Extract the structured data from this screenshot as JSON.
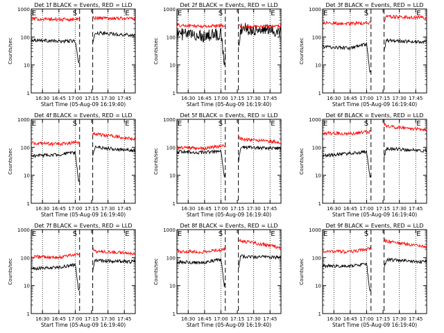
{
  "figure": {
    "xlabel": "Start Time (05-Aug-09 16:19:40)",
    "ylabel": "Counts/sec",
    "series_names": [
      "Events",
      "LLD"
    ],
    "colors": {
      "events": "#000000",
      "lld": "#ff0000",
      "axes": "#000000",
      "background": "#ffffff"
    },
    "markers": {
      "start": "S",
      "end": "E"
    }
  },
  "chart_data": [
    {
      "type": "line",
      "title": "Det 1f BLACK = Events, RED = LLD",
      "xlabel": "Start Time (05-Aug-09 16:19:40)",
      "ylabel": "Counts/sec",
      "xlim": [
        "16:19:40",
        "17:55"
      ],
      "ylim": [
        1,
        1000
      ],
      "yscale": "log",
      "xticks": [
        "16:30",
        "16:45",
        "17:00",
        "17:15",
        "17:30",
        "17:45"
      ],
      "yticks": [
        "1",
        "10",
        "100",
        "1000"
      ],
      "gap": [
        "17:04",
        "17:16"
      ],
      "dashed_lines": [
        "17:04",
        "17:16"
      ],
      "dotted_lines": [
        "16:30",
        "16:45",
        "17:00",
        "17:30",
        "17:45"
      ],
      "series": [
        {
          "name": "Events",
          "color": "#000000",
          "x": [
            "16:20",
            "16:45",
            "17:00",
            "17:03",
            "17:16",
            "17:18",
            "17:55"
          ],
          "y": [
            80,
            70,
            72,
            12,
            55,
            140,
            115
          ]
        },
        {
          "name": "LLD",
          "color": "#ff0000",
          "x": [
            "16:20",
            "16:45",
            "17:00",
            "17:03",
            "17:16",
            "17:18",
            "17:55"
          ],
          "y": [
            450,
            420,
            430,
            430,
            480,
            480,
            460
          ]
        }
      ]
    },
    {
      "type": "line",
      "title": "Det 2f BLACK = Events, RED = LLD",
      "xlabel": "Start Time (05-Aug-09 16:19:40)",
      "ylabel": "Counts/sec",
      "xlim": [
        "16:19:40",
        "17:55"
      ],
      "ylim": [
        1,
        1000
      ],
      "yscale": "log",
      "xticks": [
        "16:30",
        "16:45",
        "17:00",
        "17:15",
        "17:30",
        "17:45"
      ],
      "yticks": [
        "1",
        "10",
        "100",
        "1000"
      ],
      "gap": [
        "17:04",
        "17:16"
      ],
      "dashed_lines": [
        "17:04",
        "17:16"
      ],
      "dotted_lines": [
        "16:30",
        "16:45",
        "17:00",
        "17:30",
        "17:45"
      ],
      "series": [
        {
          "name": "Events",
          "color": "#000000",
          "x": [
            "16:20",
            "16:45",
            "17:00",
            "17:03",
            "17:16",
            "17:18",
            "17:55"
          ],
          "y": [
            130,
            110,
            130,
            15,
            50,
            200,
            160
          ]
        },
        {
          "name": "LLD",
          "color": "#ff0000",
          "x": [
            "16:20",
            "16:45",
            "17:00",
            "17:03",
            "17:16",
            "17:18",
            "17:55"
          ],
          "y": [
            260,
            240,
            260,
            260,
            280,
            220,
            250
          ]
        }
      ]
    },
    {
      "type": "line",
      "title": "Det 3f BLACK = Events, RED = LLD",
      "xlabel": "Start Time (05-Aug-09 16:19:40)",
      "ylabel": "Counts/sec",
      "xlim": [
        "16:19:40",
        "17:55"
      ],
      "ylim": [
        1,
        1000
      ],
      "yscale": "log",
      "xticks": [
        "16:30",
        "16:45",
        "17:00",
        "17:15",
        "17:30",
        "17:45"
      ],
      "yticks": [
        "1",
        "10",
        "100",
        "1000"
      ],
      "gap": [
        "17:04",
        "17:16"
      ],
      "dashed_lines": [
        "17:04",
        "17:16"
      ],
      "dotted_lines": [
        "16:30",
        "16:45",
        "17:00",
        "17:30",
        "17:45"
      ],
      "series": [
        {
          "name": "Events",
          "color": "#000000",
          "x": [
            "16:20",
            "16:45",
            "17:00",
            "17:03",
            "17:16",
            "17:18",
            "17:55"
          ],
          "y": [
            45,
            40,
            55,
            5,
            30,
            75,
            65
          ]
        },
        {
          "name": "LLD",
          "color": "#ff0000",
          "x": [
            "16:20",
            "16:45",
            "17:00",
            "17:03",
            "17:16",
            "17:18",
            "17:55"
          ],
          "y": [
            320,
            300,
            320,
            320,
            360,
            540,
            480
          ]
        }
      ]
    },
    {
      "type": "line",
      "title": "Det 4f BLACK = Events, RED = LLD",
      "xlabel": "Start Time (05-Aug-09 16:19:40)",
      "ylabel": "Counts/sec",
      "xlim": [
        "16:19:40",
        "17:55"
      ],
      "ylim": [
        1,
        1000
      ],
      "yscale": "log",
      "xticks": [
        "16:30",
        "16:45",
        "17:00",
        "17:15",
        "17:30",
        "17:45"
      ],
      "yticks": [
        "1",
        "10",
        "100",
        "1000"
      ],
      "gap": [
        "17:04",
        "17:16"
      ],
      "dashed_lines": [
        "17:04",
        "17:16"
      ],
      "dotted_lines": [
        "16:30",
        "16:45",
        "17:00",
        "17:30",
        "17:45"
      ],
      "series": [
        {
          "name": "Events",
          "color": "#000000",
          "x": [
            "16:20",
            "16:45",
            "17:00",
            "17:03",
            "17:16",
            "17:18",
            "17:55"
          ],
          "y": [
            50,
            55,
            65,
            6,
            50,
            100,
            75
          ]
        },
        {
          "name": "LLD",
          "color": "#ff0000",
          "x": [
            "16:20",
            "16:45",
            "17:00",
            "17:03",
            "17:16",
            "17:18",
            "17:55"
          ],
          "y": [
            140,
            130,
            150,
            150,
            300,
            300,
            200
          ]
        }
      ]
    },
    {
      "type": "line",
      "title": "Det 5f BLACK = Events, RED = LLD",
      "xlabel": "Start Time (05-Aug-09 16:19:40)",
      "ylabel": "Counts/sec",
      "xlim": [
        "16:19:40",
        "17:55"
      ],
      "ylim": [
        1,
        1000
      ],
      "yscale": "log",
      "xticks": [
        "16:30",
        "16:45",
        "17:00",
        "17:15",
        "17:30",
        "17:45"
      ],
      "yticks": [
        "1",
        "10",
        "100",
        "1000"
      ],
      "gap": [
        "17:04",
        "17:16"
      ],
      "dashed_lines": [
        "17:04",
        "17:16"
      ],
      "dotted_lines": [
        "16:30",
        "16:45",
        "17:00",
        "17:30",
        "17:45"
      ],
      "series": [
        {
          "name": "Events",
          "color": "#000000",
          "x": [
            "16:20",
            "16:45",
            "17:00",
            "17:03",
            "17:16",
            "17:18",
            "17:55"
          ],
          "y": [
            70,
            65,
            70,
            10,
            30,
            100,
            90
          ]
        },
        {
          "name": "LLD",
          "color": "#ff0000",
          "x": [
            "16:20",
            "16:45",
            "17:00",
            "17:03",
            "17:16",
            "17:18",
            "17:55"
          ],
          "y": [
            100,
            90,
            110,
            110,
            250,
            200,
            150
          ]
        }
      ]
    },
    {
      "type": "line",
      "title": "Det 6f BLACK = Events, RED = LLD",
      "xlabel": "Start Time (05-Aug-09 16:19:40)",
      "ylabel": "Counts/sec",
      "xlim": [
        "16:19:40",
        "17:55"
      ],
      "ylim": [
        1,
        1000
      ],
      "yscale": "log",
      "xticks": [
        "16:30",
        "16:45",
        "17:00",
        "17:15",
        "17:30",
        "17:45"
      ],
      "yticks": [
        "1",
        "10",
        "100",
        "1000"
      ],
      "gap": [
        "17:04",
        "17:16"
      ],
      "dashed_lines": [
        "17:04",
        "17:16"
      ],
      "dotted_lines": [
        "16:30",
        "16:45",
        "17:00",
        "17:30",
        "17:45"
      ],
      "series": [
        {
          "name": "Events",
          "color": "#000000",
          "x": [
            "16:20",
            "16:45",
            "17:00",
            "17:03",
            "17:16",
            "17:18",
            "17:55"
          ],
          "y": [
            50,
            60,
            70,
            8,
            45,
            90,
            75
          ]
        },
        {
          "name": "LLD",
          "color": "#ff0000",
          "x": [
            "16:20",
            "16:45",
            "17:00",
            "17:03",
            "17:16",
            "17:18",
            "17:55"
          ],
          "y": [
            320,
            310,
            350,
            350,
            700,
            550,
            420
          ]
        }
      ]
    },
    {
      "type": "line",
      "title": "Det 7f BLACK = Events, RED = LLD",
      "xlabel": "Start Time (05-Aug-09 16:19:40)",
      "ylabel": "Counts/sec",
      "xlim": [
        "16:19:40",
        "17:55"
      ],
      "ylim": [
        1,
        1000
      ],
      "yscale": "log",
      "xticks": [
        "16:30",
        "16:45",
        "17:00",
        "17:15",
        "17:30",
        "17:45"
      ],
      "yticks": [
        "1",
        "10",
        "100",
        "1000"
      ],
      "gap": [
        "17:04",
        "17:16"
      ],
      "dashed_lines": [
        "17:04",
        "17:16"
      ],
      "dotted_lines": [
        "16:30",
        "16:45",
        "17:00",
        "17:30",
        "17:45"
      ],
      "series": [
        {
          "name": "Events",
          "color": "#000000",
          "x": [
            "16:20",
            "16:45",
            "17:00",
            "17:03",
            "17:16",
            "17:18",
            "17:55"
          ],
          "y": [
            40,
            45,
            55,
            7,
            35,
            80,
            70
          ]
        },
        {
          "name": "LLD",
          "color": "#ff0000",
          "x": [
            "16:20",
            "16:45",
            "17:00",
            "17:03",
            "17:16",
            "17:18",
            "17:55"
          ],
          "y": [
            110,
            100,
            130,
            130,
            220,
            170,
            140
          ]
        }
      ]
    },
    {
      "type": "line",
      "title": "Det 8f BLACK = Events, RED = LLD",
      "xlabel": "Start Time (05-Aug-09 16:19:40)",
      "ylabel": "Counts/sec",
      "xlim": [
        "16:19:40",
        "17:55"
      ],
      "ylim": [
        1,
        1000
      ],
      "yscale": "log",
      "xticks": [
        "16:30",
        "16:45",
        "17:00",
        "17:15",
        "17:30",
        "17:45"
      ],
      "yticks": [
        "1",
        "10",
        "100",
        "1000"
      ],
      "gap": [
        "17:04",
        "17:16"
      ],
      "dashed_lines": [
        "17:04",
        "17:16"
      ],
      "dotted_lines": [
        "16:30",
        "16:45",
        "17:00",
        "17:30",
        "17:45"
      ],
      "series": [
        {
          "name": "Events",
          "color": "#000000",
          "x": [
            "16:20",
            "16:45",
            "17:00",
            "17:03",
            "17:16",
            "17:18",
            "17:55"
          ],
          "y": [
            70,
            65,
            90,
            10,
            40,
            110,
            100
          ]
        },
        {
          "name": "LLD",
          "color": "#ff0000",
          "x": [
            "16:20",
            "16:45",
            "17:00",
            "17:03",
            "17:16",
            "17:18",
            "17:55"
          ],
          "y": [
            170,
            160,
            190,
            190,
            450,
            400,
            230
          ]
        }
      ]
    },
    {
      "type": "line",
      "title": "Det 9f BLACK = Events, RED = LLD",
      "xlabel": "Start Time (05-Aug-09 16:19:40)",
      "ylabel": "Counts/sec",
      "xlim": [
        "16:19:40",
        "17:55"
      ],
      "ylim": [
        1,
        1000
      ],
      "yscale": "log",
      "xticks": [
        "16:30",
        "16:45",
        "17:00",
        "17:15",
        "17:30",
        "17:45"
      ],
      "yticks": [
        "1",
        "10",
        "100",
        "1000"
      ],
      "gap": [
        "17:04",
        "17:16"
      ],
      "dashed_lines": [
        "17:04",
        "17:16"
      ],
      "dotted_lines": [
        "16:30",
        "16:45",
        "17:00",
        "17:30",
        "17:45"
      ],
      "series": [
        {
          "name": "Events",
          "color": "#000000",
          "x": [
            "16:20",
            "16:45",
            "17:00",
            "17:03",
            "17:16",
            "17:18",
            "17:55"
          ],
          "y": [
            50,
            50,
            60,
            6,
            40,
            85,
            70
          ]
        },
        {
          "name": "LLD",
          "color": "#ff0000",
          "x": [
            "16:20",
            "16:45",
            "17:00",
            "17:03",
            "17:16",
            "17:18",
            "17:55"
          ],
          "y": [
            170,
            160,
            200,
            200,
            480,
            380,
            240
          ]
        }
      ]
    }
  ]
}
